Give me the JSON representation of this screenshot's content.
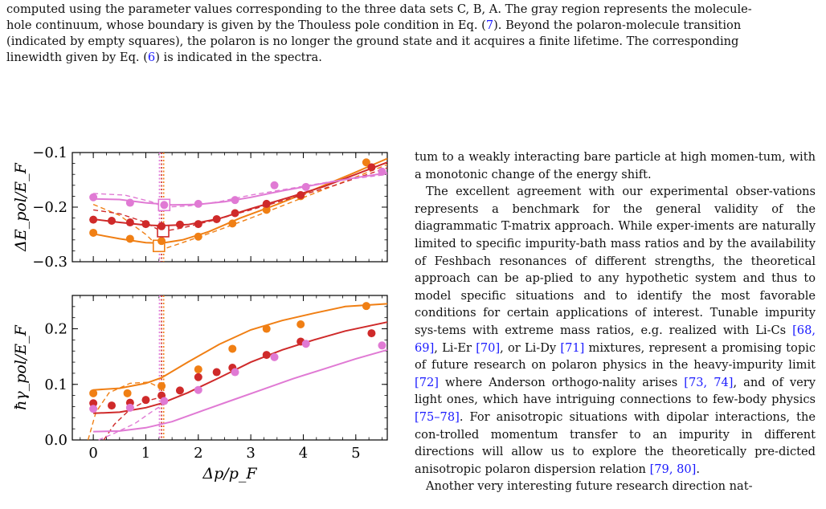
{
  "caption": {
    "line1": "computed using the parameter values corresponding to the three data sets C, B, A. The gray region represents the molecule-",
    "line2": "hole continuum, whose boundary is given by the Thouless pole condition in Eq. (",
    "line2_ref": "7",
    "line2_end": "). Beyond the polaron-molecule transition",
    "line3": "(indicated by empty squares), the polaron is no longer the ground state and it acquires a finite lifetime. The corresponding",
    "line4": "linewidth given by Eq. (",
    "line4_ref": "6",
    "line4_end": ") is indicated in the spectra."
  },
  "colors": {
    "A": "#f07f14",
    "B": "#cf2a2a",
    "C": "#e07ad4"
  },
  "chart_data": [
    {
      "type": "scatter",
      "panel": "top",
      "ylabel": "ΔE_pol/E_F",
      "xlim": [
        -0.4,
        5.6
      ],
      "ylim": [
        -0.3,
        -0.1
      ],
      "inverted_y": true,
      "yticks": [
        "-0.1",
        "-0.2",
        "-0.3"
      ],
      "series": [
        {
          "color": "A",
          "points": [
            [
              0,
              -0.247
            ],
            [
              0.7,
              -0.258
            ],
            [
              1.3,
              -0.262
            ],
            [
              2.0,
              -0.254
            ],
            [
              2.65,
              -0.23
            ],
            [
              3.3,
              -0.205
            ],
            [
              3.95,
              -0.18
            ],
            [
              5.2,
              -0.118
            ]
          ],
          "curve": [
            [
              0,
              -0.249
            ],
            [
              0.5,
              -0.258
            ],
            [
              1.0,
              -0.265
            ],
            [
              1.3,
              -0.266
            ],
            [
              1.7,
              -0.26
            ],
            [
              2.2,
              -0.245
            ],
            [
              2.8,
              -0.22
            ],
            [
              3.5,
              -0.195
            ],
            [
              4.2,
              -0.168
            ],
            [
              4.9,
              -0.14
            ],
            [
              5.6,
              -0.111
            ]
          ],
          "dashed": [
            [
              0,
              -0.195
            ],
            [
              0.5,
              -0.215
            ],
            [
              1.0,
              -0.25
            ],
            [
              1.3,
              -0.278
            ],
            [
              1.7,
              -0.265
            ],
            [
              2.3,
              -0.245
            ],
            [
              3.0,
              -0.22
            ],
            [
              3.8,
              -0.19
            ],
            [
              4.6,
              -0.16
            ],
            [
              5.6,
              -0.122
            ]
          ],
          "transition": [
            1.25,
            -0.271
          ]
        },
        {
          "color": "B",
          "points": [
            [
              0,
              -0.223
            ],
            [
              0.35,
              -0.225
            ],
            [
              0.7,
              -0.228
            ],
            [
              1.0,
              -0.231
            ],
            [
              1.3,
              -0.235
            ],
            [
              1.65,
              -0.232
            ],
            [
              2.0,
              -0.231
            ],
            [
              2.35,
              -0.222
            ],
            [
              2.7,
              -0.211
            ],
            [
              3.3,
              -0.194
            ],
            [
              3.95,
              -0.178
            ],
            [
              5.3,
              -0.127
            ]
          ],
          "curve": [
            [
              0,
              -0.222
            ],
            [
              0.5,
              -0.228
            ],
            [
              1.0,
              -0.233
            ],
            [
              1.3,
              -0.234
            ],
            [
              1.8,
              -0.232
            ],
            [
              2.4,
              -0.221
            ],
            [
              3.0,
              -0.203
            ],
            [
              3.7,
              -0.183
            ],
            [
              4.4,
              -0.162
            ],
            [
              5.0,
              -0.14
            ],
            [
              5.6,
              -0.118
            ]
          ],
          "dashed": [
            [
              0,
              -0.205
            ],
            [
              0.5,
              -0.212
            ],
            [
              1.0,
              -0.228
            ],
            [
              1.3,
              -0.245
            ],
            [
              1.7,
              -0.238
            ],
            [
              2.3,
              -0.224
            ],
            [
              3.0,
              -0.205
            ],
            [
              3.8,
              -0.183
            ],
            [
              4.6,
              -0.16
            ],
            [
              5.6,
              -0.128
            ]
          ],
          "transition": [
            1.33,
            -0.244
          ]
        },
        {
          "color": "C",
          "points": [
            [
              0,
              -0.182
            ],
            [
              0.7,
              -0.192
            ],
            [
              1.35,
              -0.196
            ],
            [
              2.0,
              -0.194
            ],
            [
              2.7,
              -0.187
            ],
            [
              3.45,
              -0.16
            ],
            [
              4.05,
              -0.163
            ],
            [
              5.5,
              -0.135
            ]
          ],
          "curve": [
            [
              0,
              -0.185
            ],
            [
              0.5,
              -0.186
            ],
            [
              1.0,
              -0.192
            ],
            [
              1.5,
              -0.196
            ],
            [
              2.0,
              -0.195
            ],
            [
              2.5,
              -0.19
            ],
            [
              3.0,
              -0.182
            ],
            [
              3.6,
              -0.17
            ],
            [
              4.3,
              -0.158
            ],
            [
              5.0,
              -0.146
            ],
            [
              5.6,
              -0.137
            ]
          ],
          "dashed": [
            [
              0,
              -0.175
            ],
            [
              0.6,
              -0.178
            ],
            [
              1.1,
              -0.19
            ],
            [
              1.35,
              -0.2
            ],
            [
              1.8,
              -0.198
            ],
            [
              2.4,
              -0.19
            ],
            [
              3.0,
              -0.178
            ],
            [
              3.8,
              -0.165
            ],
            [
              4.6,
              -0.152
            ],
            [
              5.6,
              -0.14
            ]
          ],
          "transition": [
            1.35,
            -0.196
          ]
        }
      ]
    },
    {
      "type": "scatter",
      "panel": "bottom",
      "xlabel": "Δp/p_F",
      "ylabel": "ħγ_pol/E_F",
      "xlim": [
        -0.4,
        5.6
      ],
      "ylim": [
        0.0,
        0.26
      ],
      "xticks": [
        "0",
        "1",
        "2",
        "3",
        "4",
        "5"
      ],
      "yticks": [
        "0.0",
        "0.1",
        "0.2"
      ],
      "series": [
        {
          "color": "A",
          "points": [
            [
              0,
              0.084
            ],
            [
              0.65,
              0.084
            ],
            [
              1.3,
              0.097
            ],
            [
              2.0,
              0.127
            ],
            [
              2.65,
              0.164
            ],
            [
              3.3,
              0.2
            ],
            [
              3.95,
              0.208
            ],
            [
              5.2,
              0.241
            ]
          ],
          "curve": [
            [
              0,
              0.09
            ],
            [
              0.5,
              0.093
            ],
            [
              1.0,
              0.102
            ],
            [
              1.3,
              0.112
            ],
            [
              1.8,
              0.14
            ],
            [
              2.4,
              0.172
            ],
            [
              3.0,
              0.198
            ],
            [
              3.6,
              0.215
            ],
            [
              4.2,
              0.228
            ],
            [
              4.8,
              0.24
            ],
            [
              5.6,
              0.245
            ]
          ],
          "dashed": [
            [
              -0.1,
              0.0
            ],
            [
              0.05,
              0.05
            ],
            [
              0.3,
              0.085
            ],
            [
              0.7,
              0.102
            ],
            [
              1.05,
              0.104
            ],
            [
              1.25,
              0.095
            ]
          ]
        },
        {
          "color": "B",
          "points": [
            [
              0,
              0.066
            ],
            [
              0.35,
              0.062
            ],
            [
              0.7,
              0.067
            ],
            [
              1.0,
              0.072
            ],
            [
              1.3,
              0.08
            ],
            [
              1.65,
              0.089
            ],
            [
              2.0,
              0.113
            ],
            [
              2.35,
              0.122
            ],
            [
              2.65,
              0.13
            ],
            [
              3.3,
              0.153
            ],
            [
              3.95,
              0.177
            ],
            [
              5.3,
              0.192
            ]
          ],
          "curve": [
            [
              0,
              0.048
            ],
            [
              0.5,
              0.05
            ],
            [
              1.0,
              0.058
            ],
            [
              1.3,
              0.066
            ],
            [
              1.8,
              0.085
            ],
            [
              2.4,
              0.112
            ],
            [
              3.0,
              0.14
            ],
            [
              3.6,
              0.162
            ],
            [
              4.2,
              0.18
            ],
            [
              4.8,
              0.196
            ],
            [
              5.6,
              0.212
            ]
          ],
          "dashed": [
            [
              0.2,
              0.0
            ],
            [
              0.4,
              0.028
            ],
            [
              0.7,
              0.055
            ],
            [
              1.0,
              0.07
            ],
            [
              1.3,
              0.077
            ]
          ]
        },
        {
          "color": "C",
          "points": [
            [
              0,
              0.056
            ],
            [
              0.7,
              0.058
            ],
            [
              1.35,
              0.07
            ],
            [
              2.0,
              0.09
            ],
            [
              2.7,
              0.122
            ],
            [
              3.45,
              0.149
            ],
            [
              4.05,
              0.173
            ],
            [
              5.5,
              0.17
            ]
          ],
          "curve": [
            [
              0,
              0.015
            ],
            [
              0.5,
              0.016
            ],
            [
              1.0,
              0.022
            ],
            [
              1.5,
              0.033
            ],
            [
              2.0,
              0.05
            ],
            [
              2.6,
              0.07
            ],
            [
              3.2,
              0.09
            ],
            [
              3.8,
              0.11
            ],
            [
              4.4,
              0.128
            ],
            [
              5.0,
              0.146
            ],
            [
              5.6,
              0.162
            ]
          ],
          "dashed": [
            [
              0.1,
              0.0
            ],
            [
              0.4,
              0.012
            ],
            [
              0.8,
              0.03
            ],
            [
              1.1,
              0.05
            ],
            [
              1.35,
              0.065
            ]
          ]
        }
      ],
      "vlines": [
        1.26,
        1.3,
        1.34
      ]
    }
  ],
  "body": {
    "p1": "tum to a weakly interacting bare particle at high momen-tum, with a monotonic change of the energy shift.",
    "p2_a": "The excellent agreement with our experimental obser-vations represents a benchmark for the general validity of the diagrammatic T-matrix approach. While exper-iments are naturally limited to specific impurity-bath mass ratios and by the availability of Feshbach resonances of different strengths, the theoretical approach can be ap-plied to any hypothetic system and thus to model specific situations and to identify the most favorable conditions for certain applications of interest. Tunable impurity sys-tems with extreme mass ratios, e.g. realized with Li-Cs ",
    "ref1": "[68, 69]",
    "p2_b": ", Li-Er ",
    "ref2": "[70]",
    "p2_c": ", or Li-Dy ",
    "ref3": "[71]",
    "p2_d": " mixtures, represent a promising topic of future research on polaron physics in the heavy-impurity limit ",
    "ref4": "[72]",
    "p2_e": " where Anderson orthogo-nality arises ",
    "ref5": "[73, 74]",
    "p2_f": ", and of very light ones, which have intriguing connections to few-body physics ",
    "ref6": "[75–78]",
    "p2_g": ". For anisotropic situations with dipolar interactions, the con-trolled momentum transfer to an impurity in different directions will allow us to explore the theoretically pre-dicted anisotropic polaron dispersion relation ",
    "ref7": "[79, 80]",
    "p2_h": ".",
    "p3": "Another very interesting future research direction nat-"
  }
}
